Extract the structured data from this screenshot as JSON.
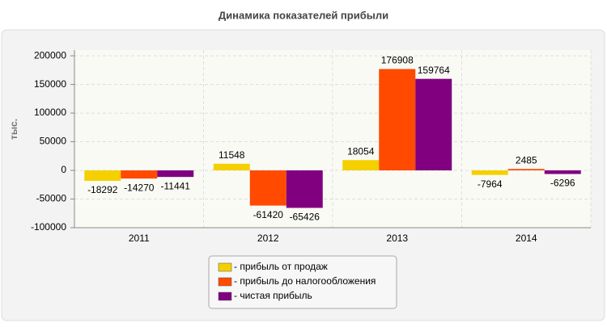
{
  "chart_data": {
    "type": "bar",
    "title": "Динамика показателей прибыли",
    "y_label": "тыс.",
    "categories": [
      "2011",
      "2012",
      "2013",
      "2014"
    ],
    "series": [
      {
        "name": "- прибыль от продаж",
        "color": "#f5d000",
        "values": [
          -18292,
          11548,
          18054,
          -7964
        ]
      },
      {
        "name": "- прибыль до налогообложения",
        "color": "#ff4a00",
        "values": [
          -14270,
          -61420,
          176908,
          2485
        ]
      },
      {
        "name": "- чистая прибыль",
        "color": "#800080",
        "values": [
          -11441,
          -65426,
          159764,
          -6296
        ]
      }
    ],
    "ylim": [
      -100000,
      210000
    ],
    "yticks": [
      -100000,
      -50000,
      0,
      50000,
      100000,
      150000,
      200000
    ],
    "grid": true
  }
}
